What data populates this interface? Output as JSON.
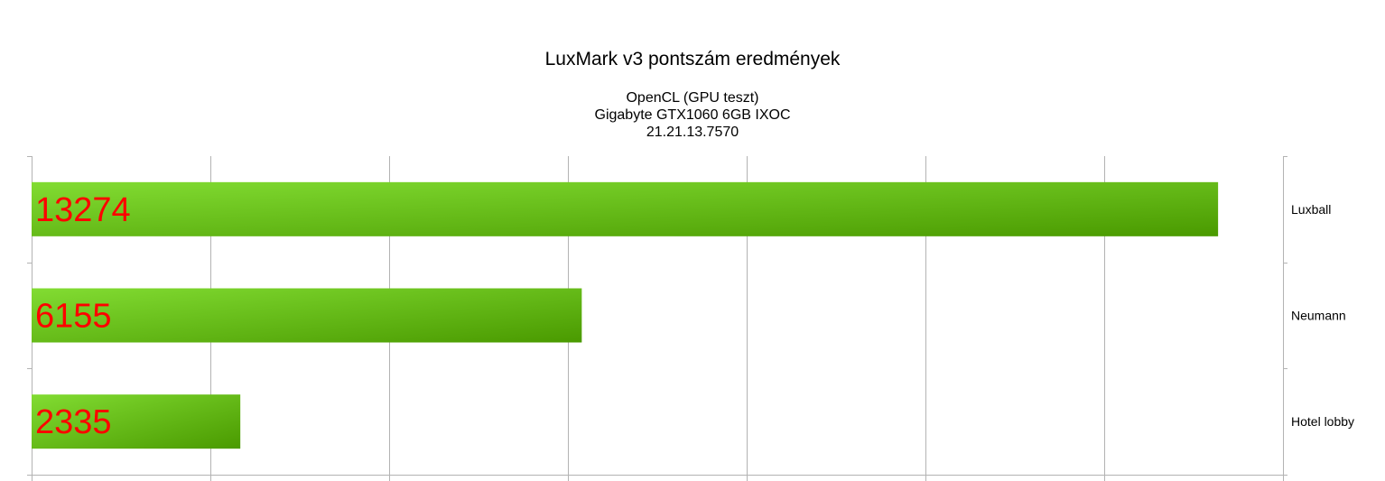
{
  "chart_data": {
    "type": "bar",
    "orientation": "horizontal",
    "title": "LuxMark v3 pontszám eredmények",
    "subtitle": [
      "OpenCL (GPU teszt)",
      "Gigabyte GTX1060 6GB IXOC",
      "21.21.13.7570"
    ],
    "categories": [
      "Luxball",
      "Neumann",
      "Hotel lobby"
    ],
    "values": [
      13274,
      6155,
      2335
    ],
    "xlim": [
      0,
      14000
    ],
    "x_gridline_step": 2000,
    "grid": true,
    "legend": "none",
    "category_axis_position": "right",
    "data_labels": true,
    "colors": {
      "bar_light": "#82dc32",
      "bar_dark": "#4a9a00",
      "data_label": "#ff0000",
      "grid": "#b3b3b3"
    }
  }
}
